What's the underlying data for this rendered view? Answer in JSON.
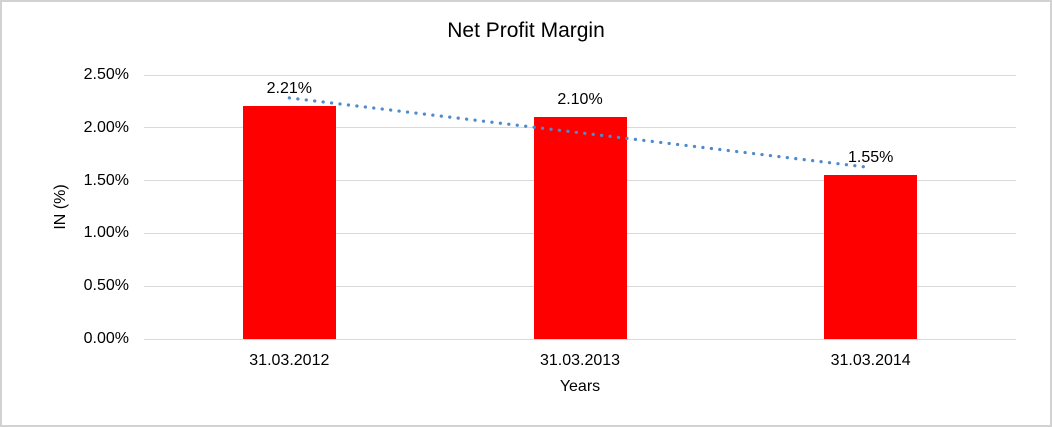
{
  "chart_data": {
    "type": "bar",
    "title": "Net Profit Margin",
    "xlabel": "Years",
    "ylabel": "IN (%)",
    "categories": [
      "31.03.2012",
      "31.03.2013",
      "31.03.2014"
    ],
    "values": [
      2.21,
      2.1,
      1.55
    ],
    "data_labels": [
      "2.21%",
      "2.10%",
      "1.55%"
    ],
    "ylim": [
      0,
      2.5
    ],
    "ytick_labels": [
      "0.00%",
      "0.50%",
      "1.00%",
      "1.50%",
      "2.00%",
      "2.50%"
    ],
    "grid": true,
    "legend": false,
    "trendline": {
      "type": "linear",
      "style": "dotted"
    },
    "colors": {
      "bar": "#FF0000",
      "trendline": "#4E8BCC",
      "gridline": "#D9D9D9",
      "text": "#000000",
      "border": "#D2D2D2",
      "background": "#FFFFFF"
    }
  }
}
